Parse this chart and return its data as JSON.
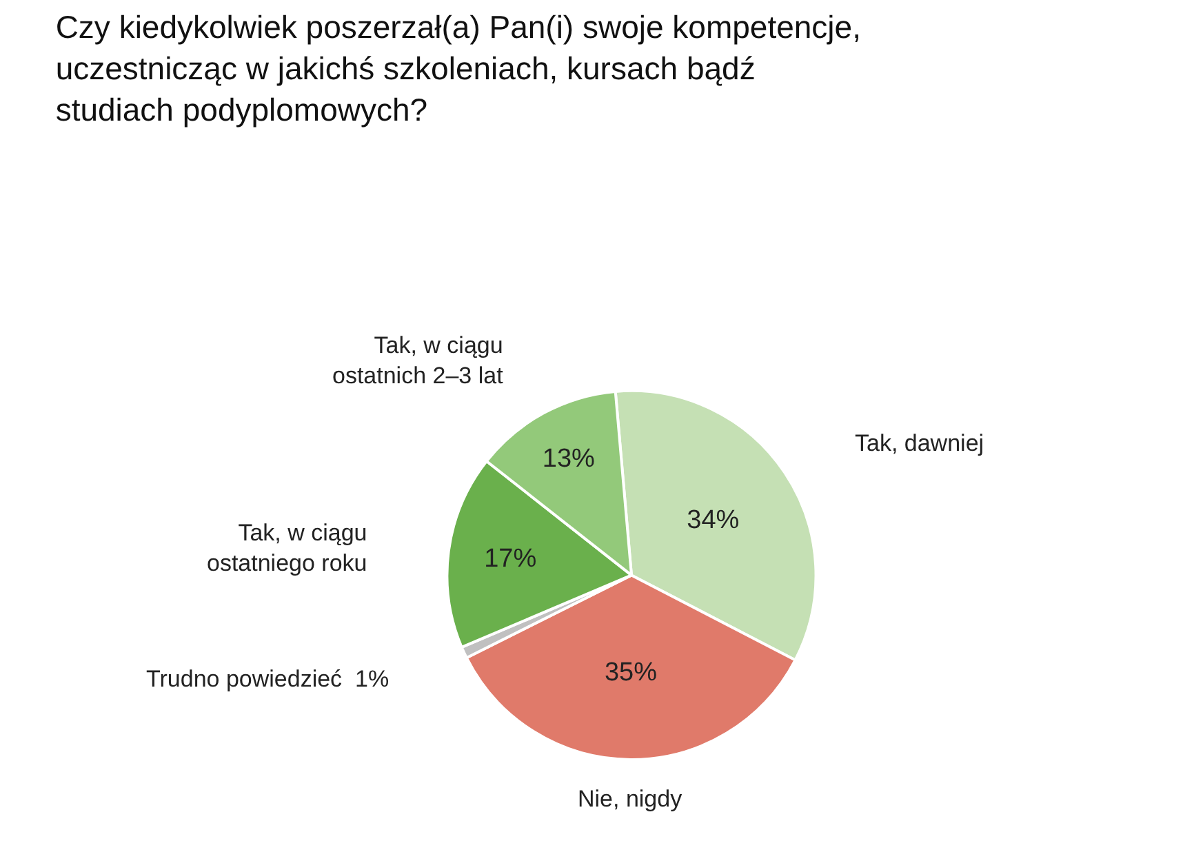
{
  "chart_data": {
    "type": "pie",
    "title": "Czy kiedykolwiek poszerzał(a) Pan(i) swoje kompetencje,\nuczestnicząc w jakichś szkoleniach, kursach bądź\nstudiach podyplomowych?",
    "categories": [
      "Tak, dawniej",
      "Nie, nigdy",
      "Trudno powiedzieć",
      "Tak, w ciągu\nostatniego roku",
      "Tak, w ciągu\nostatnich 2–3 lat"
    ],
    "values": [
      34,
      35,
      1,
      17,
      13
    ],
    "value_labels": [
      "34%",
      "35%",
      "1%",
      "17%",
      "13%"
    ],
    "colors": [
      "#c5e0b4",
      "#e07a6a",
      "#c0c0c0",
      "#6ab04c",
      "#93c97a"
    ],
    "legend": false
  }
}
